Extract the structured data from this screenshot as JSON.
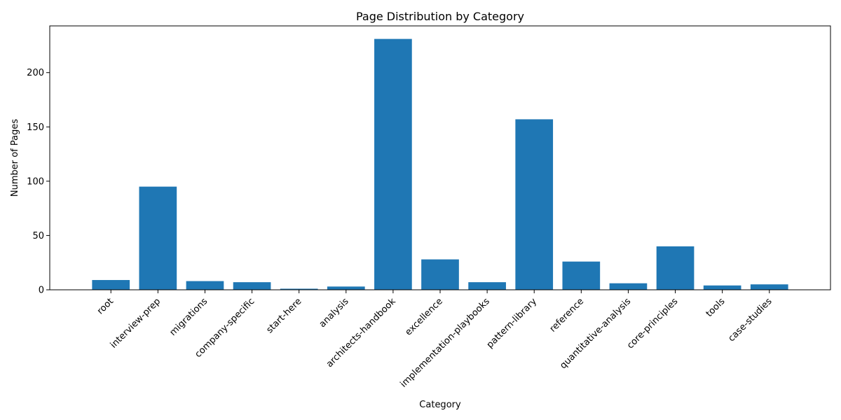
{
  "chart_data": {
    "type": "bar",
    "title": "Page Distribution by Category",
    "xlabel": "Category",
    "ylabel": "Number of Pages",
    "categories": [
      "root",
      "interview-prep",
      "migrations",
      "company-specific",
      "start-here",
      "analysis",
      "architects-handbook",
      "excellence",
      "implementation-playbooks",
      "pattern-library",
      "reference",
      "quantitative-analysis",
      "core-principles",
      "tools",
      "case-studies"
    ],
    "values": [
      9,
      95,
      8,
      7,
      1,
      3,
      231,
      28,
      7,
      157,
      26,
      6,
      40,
      4,
      5
    ],
    "ylim": [
      0,
      243
    ],
    "yticks": [
      0,
      50,
      100,
      150,
      200
    ],
    "grid": false,
    "bar_color": "#1f77b4"
  }
}
